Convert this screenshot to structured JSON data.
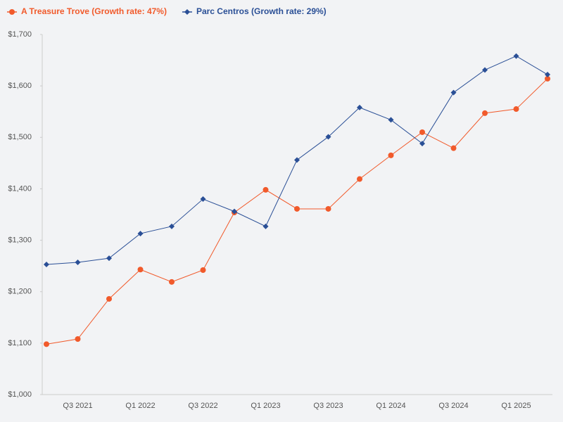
{
  "chart_data": {
    "type": "line",
    "categories": [
      null,
      "Q3 2021",
      null,
      "Q1 2022",
      null,
      "Q3 2022",
      null,
      "Q1 2023",
      null,
      "Q3 2023",
      null,
      "Q1 2024",
      null,
      "Q3 2024",
      null,
      "Q1 2025",
      null
    ],
    "series": [
      {
        "name": "A Treasure Trove (Growth rate: 47%)",
        "color": "#f15a2b",
        "marker": "circle",
        "values": [
          1098,
          1108,
          1186,
          1243,
          1219,
          1242,
          1354,
          1398,
          1361,
          1361,
          1419,
          1465,
          1510,
          1479,
          1547,
          1555,
          1614
        ]
      },
      {
        "name": "Parc Centros (Growth rate: 29%)",
        "color": "#2a4f96",
        "marker": "diamond",
        "values": [
          1253,
          1257,
          1265,
          1313,
          1327,
          1380,
          1356,
          1327,
          1456,
          1501,
          1558,
          1534,
          1488,
          1587,
          1631,
          1658,
          1622
        ]
      }
    ],
    "ylim": [
      1000,
      1700
    ],
    "yticks": [
      {
        "value": 1000,
        "label": "$1,000"
      },
      {
        "value": 1100,
        "label": "$1,100"
      },
      {
        "value": 1200,
        "label": "$1,200"
      },
      {
        "value": 1300,
        "label": "$1,300"
      },
      {
        "value": 1400,
        "label": "$1,400"
      },
      {
        "value": 1500,
        "label": "$1,500"
      },
      {
        "value": 1600,
        "label": "$1,600"
      },
      {
        "value": 1700,
        "label": "$1,700"
      }
    ],
    "grid": false,
    "legend": "top-left"
  }
}
